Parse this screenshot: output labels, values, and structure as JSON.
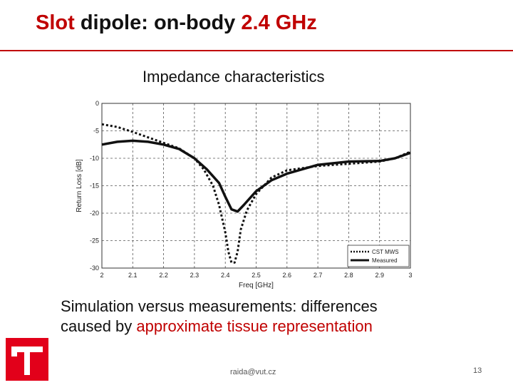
{
  "slide": {
    "title_part1": "Slot",
    "title_part2": " dipole: on-body ",
    "title_part3": "2.4 GHz",
    "subtitle": "Impedance characteristics",
    "caption_line1": "Simulation versus measurements: differences caused by ",
    "caption_highlight": "approximate tissue representation",
    "footer_email": "raida@vut.cz",
    "page_number": "13"
  },
  "colors": {
    "accent": "#c00000",
    "logo": "#e2001a"
  },
  "logo_icon": "university-logo-icon",
  "chart_data": {
    "type": "line",
    "xlabel": "Freq [GHz]",
    "ylabel": "Return Loss [dB]",
    "xlim": [
      2,
      3
    ],
    "ylim": [
      -30,
      0
    ],
    "xticks": [
      "2",
      "2.1",
      "2.2",
      "2.3",
      "2.4",
      "2.5",
      "2.6",
      "2.7",
      "2.8",
      "2.9",
      "3"
    ],
    "yticks": [
      "0",
      "-5",
      "-10",
      "-15",
      "-20",
      "-25",
      "-30"
    ],
    "grid": true,
    "legend_position": "bottom-right",
    "series": [
      {
        "name": "CST MWS",
        "style": "dotted",
        "x": [
          2.0,
          2.05,
          2.1,
          2.15,
          2.2,
          2.25,
          2.3,
          2.33,
          2.36,
          2.38,
          2.4,
          2.41,
          2.42,
          2.43,
          2.44,
          2.45,
          2.47,
          2.5,
          2.55,
          2.6,
          2.7,
          2.8,
          2.9,
          2.95,
          3.0
        ],
        "y": [
          -3.8,
          -4.3,
          -5.2,
          -6.2,
          -7.2,
          -8.2,
          -10.0,
          -12.0,
          -15.0,
          -18.5,
          -23.5,
          -27.0,
          -29.0,
          -29.0,
          -27.0,
          -23.0,
          -19.5,
          -16.5,
          -13.5,
          -12.2,
          -11.4,
          -11.0,
          -10.6,
          -10.0,
          -8.8
        ]
      },
      {
        "name": "Measured",
        "style": "solid",
        "x": [
          2.0,
          2.05,
          2.1,
          2.15,
          2.2,
          2.25,
          2.3,
          2.34,
          2.38,
          2.4,
          2.42,
          2.44,
          2.46,
          2.5,
          2.55,
          2.6,
          2.7,
          2.8,
          2.9,
          2.95,
          3.0
        ],
        "y": [
          -7.5,
          -7.0,
          -6.8,
          -7.0,
          -7.5,
          -8.3,
          -10.0,
          -12.0,
          -14.5,
          -17.0,
          -19.3,
          -19.7,
          -18.5,
          -16.0,
          -14.0,
          -12.8,
          -11.2,
          -10.6,
          -10.5,
          -10.0,
          -9.0
        ]
      }
    ]
  }
}
